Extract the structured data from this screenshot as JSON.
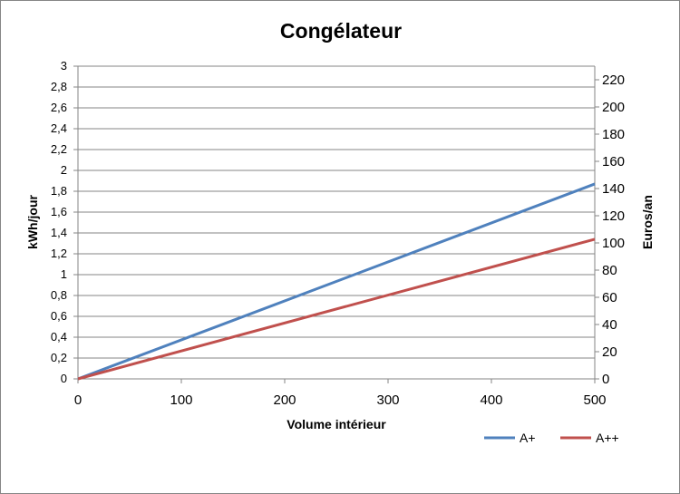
{
  "chart_data": {
    "type": "line",
    "title": "Congélateur",
    "xlabel": "Volume intérieur",
    "ylabel": "kWh/jour",
    "y2label": "Euros/an",
    "xlim": [
      0,
      500
    ],
    "ylim": [
      0,
      3
    ],
    "y2lim": [
      0,
      230
    ],
    "xticks": [
      "0",
      "100",
      "200",
      "300",
      "400",
      "500"
    ],
    "yticks": [
      "0",
      "0,2",
      "0,4",
      "0,6",
      "0,8",
      "1",
      "1,2",
      "1,4",
      "1,6",
      "1,8",
      "2",
      "2,2",
      "2,4",
      "2,6",
      "2,8",
      "3"
    ],
    "y2ticks": [
      "0",
      "20",
      "40",
      "60",
      "80",
      "100",
      "120",
      "140",
      "160",
      "180",
      "200",
      "220"
    ],
    "grid": true,
    "legend_position": "bottom-right",
    "series": [
      {
        "name": "A+",
        "color": "#4F81BD",
        "x": [
          0,
          500
        ],
        "y": [
          0,
          1.87
        ]
      },
      {
        "name": "A++",
        "color": "#C0504D",
        "x": [
          0,
          500
        ],
        "y": [
          0,
          1.34
        ]
      }
    ]
  }
}
